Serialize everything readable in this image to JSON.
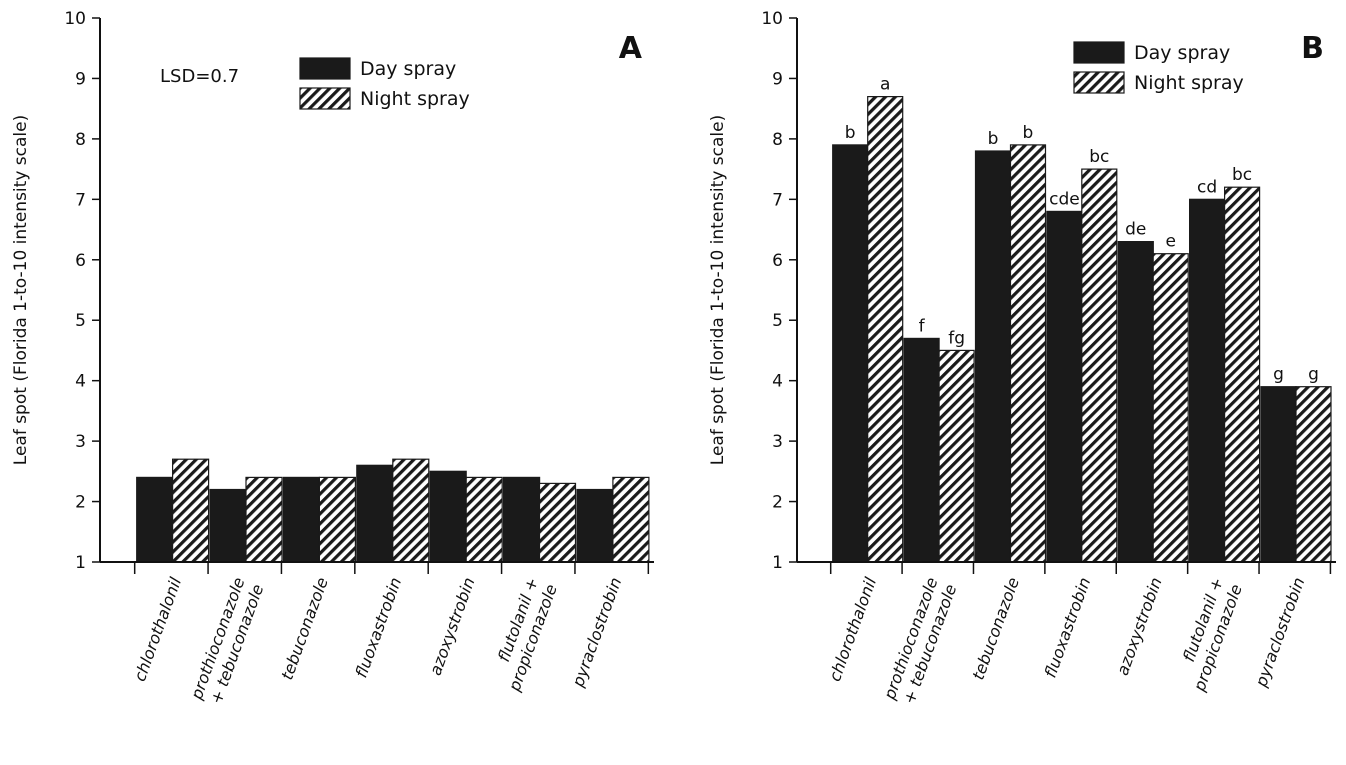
{
  "hatch_color": "#1a1a1a",
  "day_color": "#1a1a1a",
  "chart_data": [
    {
      "type": "bar",
      "panel_label": "A",
      "ylabel": "Leaf spot (Florida 1-to-10 intensity scale)",
      "ylim": [
        1,
        10
      ],
      "yticks": [
        1,
        2,
        3,
        4,
        5,
        6,
        7,
        8,
        9,
        10
      ],
      "annotation": "LSD=0.7",
      "legend_position": "top-center",
      "categories": [
        [
          "chlorothalonil"
        ],
        [
          "prothioconazole",
          "+ tebuconazole"
        ],
        [
          "tebuconazole"
        ],
        [
          "fluoxastrobin"
        ],
        [
          "azoxystrobin"
        ],
        [
          "flutolanil +",
          "propiconazole"
        ],
        [
          "pyraclostrobin"
        ]
      ],
      "series": [
        {
          "name": "Day spray",
          "pattern": "solid",
          "values": [
            2.4,
            2.2,
            2.4,
            2.6,
            2.5,
            2.4,
            2.2
          ],
          "labels": []
        },
        {
          "name": "Night spray",
          "pattern": "hatched",
          "values": [
            2.7,
            2.4,
            2.4,
            2.7,
            2.4,
            2.3,
            2.4
          ],
          "labels": []
        }
      ]
    },
    {
      "type": "bar",
      "panel_label": "B",
      "ylabel": "Leaf spot (Florida 1-to-10 intensity scale)",
      "ylim": [
        1,
        10
      ],
      "yticks": [
        1,
        2,
        3,
        4,
        5,
        6,
        7,
        8,
        9,
        10
      ],
      "annotation": "",
      "legend_position": "top-right",
      "categories": [
        [
          "chlorothalonil"
        ],
        [
          "prothioconazole",
          "+ tebuconazole"
        ],
        [
          "tebuconazole"
        ],
        [
          "fluoxastrobin"
        ],
        [
          "azoxystrobin"
        ],
        [
          "flutolanil +",
          "propiconazole"
        ],
        [
          "pyraclostrobin"
        ]
      ],
      "series": [
        {
          "name": "Day spray",
          "pattern": "solid",
          "values": [
            7.9,
            4.7,
            7.8,
            6.8,
            6.3,
            7.0,
            3.9
          ],
          "labels": [
            "b",
            "f",
            "b",
            "cde",
            "de",
            "cd",
            "g"
          ]
        },
        {
          "name": "Night spray",
          "pattern": "hatched",
          "values": [
            8.7,
            4.5,
            7.9,
            7.5,
            6.1,
            7.2,
            3.9
          ],
          "labels": [
            "a",
            "fg",
            "b",
            "bc",
            "e",
            "bc",
            "g"
          ]
        }
      ]
    }
  ]
}
